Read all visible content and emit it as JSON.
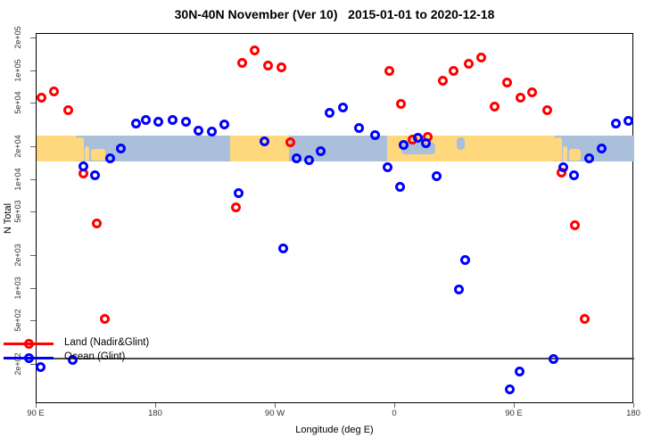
{
  "title": "30N-40N November (Ver 10)   2015-01-01 to 2020-12-18",
  "axes": {
    "x": {
      "label": "Longitude (deg E)",
      "range_deg": [
        90,
        540
      ],
      "ticks": [
        {
          "deg": 90,
          "label": "90 E"
        },
        {
          "deg": 180,
          "label": "180"
        },
        {
          "deg": 270,
          "label": "90 W"
        },
        {
          "deg": 360,
          "label": "0"
        },
        {
          "deg": 450,
          "label": "90 E"
        },
        {
          "deg": 540,
          "label": "180"
        }
      ]
    },
    "y": {
      "label": "N Total",
      "scale": "log10",
      "range": [
        140,
        220000
      ],
      "ticks": [
        {
          "value": 200000,
          "label": "2e+05"
        },
        {
          "value": 100000,
          "label": "1e+05"
        },
        {
          "value": 50000,
          "label": "5e+04"
        },
        {
          "value": 20000,
          "label": "2e+04"
        },
        {
          "value": 10000,
          "label": "1e+04"
        },
        {
          "value": 5000,
          "label": "5e+03"
        },
        {
          "value": 2000,
          "label": "2e+03"
        },
        {
          "value": 1000,
          "label": "1e+03"
        },
        {
          "value": 500,
          "label": "5e+02"
        },
        {
          "value": 200,
          "label": "2e+02"
        }
      ]
    }
  },
  "reference_line": {
    "value": 230
  },
  "map_strip": {
    "n_range": [
      14700,
      25500
    ],
    "ocean_color": "#a9bfda",
    "land_color": "#ffd87e",
    "land_segments_deg": [
      [
        90,
        120
      ],
      [
        236,
        280
      ],
      [
        354,
        480
      ]
    ],
    "coast_land_patches": [
      [
        120,
        125.5,
        0.05,
        0.95
      ],
      [
        126.5,
        129.5,
        0.4,
        0.6
      ],
      [
        131,
        142,
        0.5,
        0.45
      ],
      [
        480,
        485.5,
        0.05,
        0.95
      ],
      [
        486.5,
        489.5,
        0.4,
        0.6
      ],
      [
        491,
        500,
        0.5,
        0.45
      ]
    ],
    "sea_patches": [
      [
        365,
        390,
        0.28,
        0.42
      ],
      [
        406.5,
        412.5,
        0.08,
        0.48
      ]
    ]
  },
  "legend": {
    "items": [
      {
        "label": "Land (Nadir&Glint)",
        "color": "#ff0000"
      },
      {
        "label": "Ocean (Glint)",
        "color": "#0000ff"
      }
    ]
  },
  "chart_data": {
    "type": "scatter",
    "title": "30N-40N November (Ver 10)   2015-01-01 to 2020-12-18",
    "xlabel": "Longitude (deg E)",
    "ylabel": "N Total",
    "x_axis_note": "axis degrees run 90E eastward to 540 (=180), wrapping the globe",
    "marker": "open-circle",
    "series": [
      {
        "name": "Land (Nadir&Glint)",
        "color": "#ff0000",
        "points": [
          [
            94.0,
            57500
          ],
          [
            103.4,
            64500
          ],
          [
            114.0,
            43400
          ],
          [
            125.4,
            11500
          ],
          [
            135.0,
            3950
          ],
          [
            141.7,
            524
          ],
          [
            239.8,
            5550
          ],
          [
            244.5,
            118000
          ],
          [
            253.9,
            156000
          ],
          [
            264.6,
            113000
          ],
          [
            274.7,
            108700
          ],
          [
            281.4,
            22000
          ],
          [
            355.3,
            99500
          ],
          [
            364.7,
            49800
          ],
          [
            373.4,
            23700
          ],
          [
            384.2,
            24800
          ],
          [
            395.6,
            80900
          ],
          [
            404.3,
            99500
          ],
          [
            415.1,
            115700
          ],
          [
            425.1,
            134000
          ],
          [
            435.2,
            46800
          ],
          [
            444.6,
            78300
          ],
          [
            454.7,
            57300
          ],
          [
            463.4,
            64100
          ],
          [
            474.2,
            43900
          ],
          [
            485.4,
            11700
          ],
          [
            495.0,
            3800
          ],
          [
            502.4,
            524
          ]
        ]
      },
      {
        "name": "Ocean (Glint)",
        "color": "#0000ff",
        "points": [
          [
            92.7,
            190
          ],
          [
            116.9,
            221
          ],
          [
            125.4,
            13300
          ],
          [
            133.7,
            11100
          ],
          [
            145.5,
            15700
          ],
          [
            153.8,
            19300
          ],
          [
            165.2,
            32700
          ],
          [
            172.6,
            35900
          ],
          [
            182.0,
            34000
          ],
          [
            192.1,
            35900
          ],
          [
            202.8,
            34000
          ],
          [
            212.2,
            28100
          ],
          [
            222.3,
            27600
          ],
          [
            231.7,
            32100
          ],
          [
            241.8,
            7500
          ],
          [
            261.9,
            22800
          ],
          [
            276.0,
            2370
          ],
          [
            285.5,
            15700
          ],
          [
            294.9,
            15100
          ],
          [
            304.2,
            18200
          ],
          [
            310.3,
            41000
          ],
          [
            320.4,
            46100
          ],
          [
            333.1,
            29900
          ],
          [
            344.6,
            25700
          ],
          [
            354.0,
            13000
          ],
          [
            363.4,
            8710
          ],
          [
            366.7,
            21100
          ],
          [
            376.8,
            24600
          ],
          [
            383.5,
            21800
          ],
          [
            391.5,
            10800
          ],
          [
            407.7,
            990
          ],
          [
            412.4,
            1850
          ],
          [
            446.6,
            119
          ],
          [
            454.0,
            175
          ],
          [
            478.9,
            225
          ],
          [
            486.8,
            13000
          ],
          [
            494.6,
            11100
          ],
          [
            506.2,
            15700
          ],
          [
            515.2,
            19400
          ],
          [
            525.9,
            32900
          ],
          [
            535.3,
            34600
          ]
        ]
      }
    ]
  }
}
